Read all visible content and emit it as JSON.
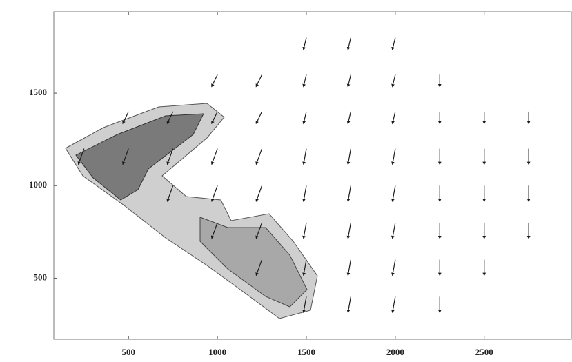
{
  "chart_data": {
    "type": "quiver",
    "color": "#1a1a1a",
    "x": [
      1500,
      1750,
      2000,
      1000,
      1250,
      1500,
      1750,
      2000,
      2250,
      500,
      750,
      1000,
      1250,
      1500,
      1750,
      2000,
      2250,
      2500,
      2750,
      250,
      500,
      750,
      1000,
      1250,
      1500,
      1750,
      2000,
      2250,
      2500,
      2750,
      750,
      1000,
      1250,
      1500,
      1750,
      2000,
      2250,
      2500,
      2750,
      1000,
      1250,
      1500,
      1750,
      2000,
      2250,
      2500,
      2750,
      1250,
      1500,
      1750,
      2000,
      2250,
      2500,
      1500,
      1750,
      2000,
      2250
    ],
    "y": [
      1800,
      1800,
      1800,
      1600,
      1600,
      1600,
      1600,
      1600,
      1600,
      1400,
      1400,
      1400,
      1400,
      1400,
      1400,
      1400,
      1400,
      1400,
      1400,
      1200,
      1200,
      1200,
      1200,
      1200,
      1200,
      1200,
      1200,
      1200,
      1200,
      1200,
      1000,
      1000,
      1000,
      1000,
      1000,
      1000,
      1000,
      1000,
      1000,
      800,
      800,
      800,
      800,
      800,
      800,
      800,
      800,
      600,
      600,
      600,
      600,
      600,
      600,
      400,
      400,
      400,
      400
    ],
    "u": [
      -15,
      -15,
      -15,
      -30,
      -30,
      -15,
      -15,
      -15,
      0,
      -30,
      -30,
      -30,
      -30,
      -15,
      -15,
      -15,
      0,
      0,
      0,
      -30,
      -30,
      -30,
      -30,
      -30,
      -15,
      -15,
      -15,
      0,
      0,
      0,
      -30,
      -30,
      -30,
      -15,
      -15,
      -15,
      0,
      0,
      0,
      -30,
      -30,
      -15,
      -15,
      -15,
      0,
      0,
      0,
      -30,
      -15,
      -15,
      -15,
      0,
      0,
      -15,
      -15,
      -15,
      0
    ],
    "v": [
      -60,
      -60,
      -60,
      -60,
      -60,
      -60,
      -60,
      -60,
      -60,
      -60,
      -60,
      -60,
      -60,
      -60,
      -60,
      -60,
      -60,
      -60,
      -60,
      -80,
      -80,
      -80,
      -80,
      -80,
      -80,
      -80,
      -80,
      -80,
      -80,
      -80,
      -80,
      -80,
      -80,
      -80,
      -80,
      -80,
      -80,
      -80,
      -80,
      -80,
      -80,
      -80,
      -80,
      -80,
      -80,
      -80,
      -80,
      -80,
      -80,
      -80,
      -80,
      -80,
      -80,
      -80,
      -80,
      -80,
      -80
    ],
    "xlim": [
      80,
      2990
    ],
    "ylim": [
      170,
      1940
    ],
    "xticks": [
      500,
      1000,
      1500,
      2000,
      2500
    ],
    "yticks": [
      500,
      1000,
      1500
    ]
  }
}
